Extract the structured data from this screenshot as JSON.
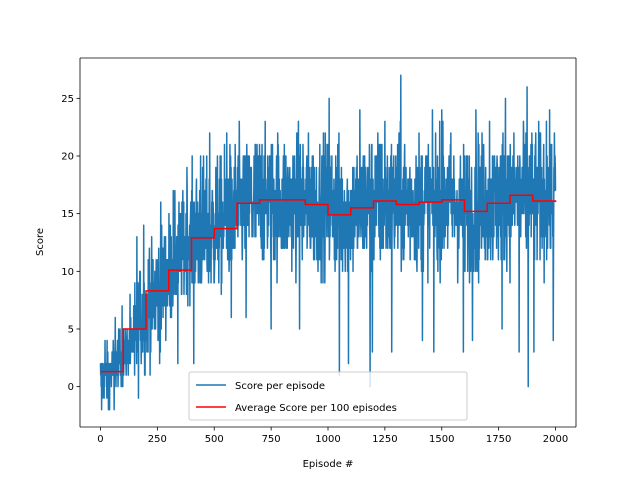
{
  "chart_data": {
    "type": "line",
    "xlabel": "Episode #",
    "ylabel": "Score",
    "xlim": [
      -90,
      2090
    ],
    "ylim": [
      -3.5,
      28.5
    ],
    "xticks": [
      0,
      250,
      500,
      750,
      1000,
      1250,
      1500,
      1750,
      2000
    ],
    "yticks": [
      0,
      5,
      10,
      15,
      20,
      25
    ],
    "grid": false,
    "legend_position": "lower-center",
    "series": [
      {
        "name": "Score per episode",
        "color": "#1f77b4",
        "anchors": [
          [
            0,
            0.5
          ],
          [
            50,
            1.5
          ],
          [
            100,
            2.5
          ],
          [
            150,
            4.5
          ],
          [
            200,
            6.5
          ],
          [
            250,
            8
          ],
          [
            300,
            10
          ],
          [
            350,
            11.5
          ],
          [
            400,
            13
          ],
          [
            450,
            13.5
          ],
          [
            500,
            13.8
          ],
          [
            550,
            14.5
          ],
          [
            600,
            15.5
          ],
          [
            700,
            16.2
          ],
          [
            1000,
            15.8
          ],
          [
            1100,
            15.2
          ],
          [
            1200,
            16.0
          ],
          [
            1300,
            15.9
          ],
          [
            1400,
            16.0
          ],
          [
            1500,
            16.1
          ],
          [
            1600,
            15.3
          ],
          [
            1700,
            15.9
          ],
          [
            1800,
            16.5
          ],
          [
            1900,
            16.4
          ],
          [
            2000,
            16.1
          ]
        ],
        "peaks": [
          [
            27,
            1320
          ],
          [
            26,
            1185
          ],
          [
            26,
            1875
          ],
          [
            25,
            1005
          ],
          [
            25,
            1780
          ],
          [
            24,
            1140
          ],
          [
            24,
            1500
          ],
          [
            24,
            1650
          ],
          [
            23,
            1250
          ],
          [
            23,
            1710
          ],
          [
            23,
            1960
          ],
          [
            22,
            1995
          ],
          [
            22,
            1860
          ],
          [
            22,
            555
          ],
          [
            22,
            480
          ],
          [
            21,
            890
          ],
          [
            21,
            710
          ],
          [
            20,
            440
          ],
          [
            19,
            380
          ],
          [
            17,
            320
          ],
          [
            16,
            265
          ],
          [
            14,
            190
          ],
          [
            13,
            160
          ],
          [
            12,
            215
          ],
          [
            11,
            245
          ],
          [
            10,
            175
          ],
          [
            8,
            130
          ],
          [
            7,
            95
          ],
          [
            6,
            65
          ],
          [
            4,
            20
          ]
        ],
        "troughs": [
          [
            0,
            1185
          ],
          [
            0,
            1880
          ],
          [
            -2,
            5
          ],
          [
            -2,
            35
          ],
          [
            -2,
            60
          ],
          [
            1,
            1050
          ],
          [
            2,
            1090
          ],
          [
            3,
            1280
          ],
          [
            4,
            1415
          ],
          [
            4,
            1990
          ],
          [
            5,
            750
          ],
          [
            5,
            875
          ],
          [
            3,
            1595
          ],
          [
            4,
            1635
          ],
          [
            5,
            1765
          ],
          [
            3,
            1840
          ],
          [
            6,
            575
          ],
          [
            6,
            640
          ],
          [
            2,
            260
          ],
          [
            2,
            340
          ],
          [
            2,
            410
          ],
          [
            3,
            1195
          ],
          [
            3,
            1465
          ],
          [
            2,
            120
          ],
          [
            1,
            150
          ],
          [
            3,
            1905
          ]
        ]
      },
      {
        "name": "Average Score per 100 episodes",
        "color": "#ff0000",
        "x": [
          0,
          100,
          200,
          300,
          400,
          500,
          600,
          700,
          800,
          900,
          1000,
          1100,
          1200,
          1300,
          1400,
          1500,
          1600,
          1700,
          1800,
          1900,
          2000
        ],
        "values": [
          1.3,
          5.0,
          8.3,
          10.1,
          12.9,
          13.7,
          15.9,
          16.2,
          16.2,
          15.8,
          14.9,
          15.5,
          16.1,
          15.8,
          16.0,
          16.2,
          15.2,
          15.9,
          16.6,
          16.1,
          16.0
        ]
      }
    ]
  }
}
